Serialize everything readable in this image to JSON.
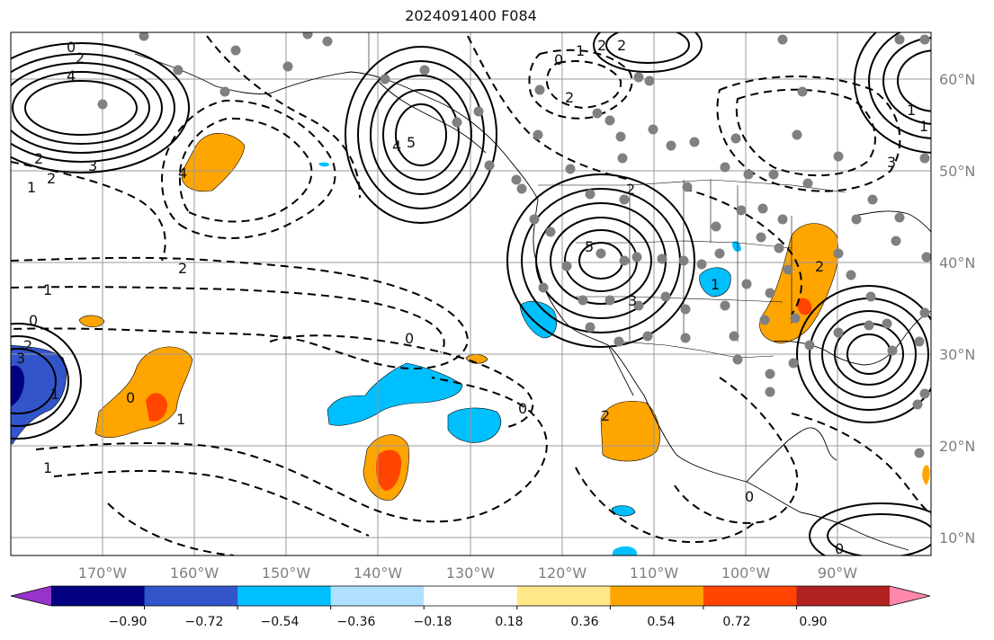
{
  "title": "2024091400 F084",
  "lat_labels": [
    "60°N",
    "50°N",
    "40°N",
    "30°N",
    "20°N",
    "10°N"
  ],
  "lon_labels": [
    "170°W",
    "160°W",
    "150°W",
    "140°W",
    "130°W",
    "120°W",
    "110°W",
    "100°W",
    "90°W"
  ],
  "colorbar": {
    "ticks": [
      "−0.90",
      "−0.72",
      "−0.54",
      "−0.36",
      "−0.18",
      "0.18",
      "0.36",
      "0.54",
      "0.72",
      "0.90"
    ],
    "colors": [
      "#9933cc",
      "#000080",
      "#3355cc",
      "#00bfff",
      "#b0e0ff",
      "#ffffff",
      "#ffe88a",
      "#ffa500",
      "#ff4500",
      "#b22222",
      "#ff88aa"
    ]
  },
  "contour_labels": [
    "0",
    "2",
    "4",
    "2",
    "1",
    "3",
    "2",
    "5",
    "4",
    "1",
    "2",
    "0",
    "1",
    "2",
    "2",
    "2",
    "2",
    "4",
    "5",
    "3",
    "1",
    "3",
    "2",
    "1",
    "1",
    "0",
    "0",
    "2",
    "3",
    "0",
    "1",
    "1",
    "1",
    "0",
    "2",
    "0",
    "0"
  ]
}
